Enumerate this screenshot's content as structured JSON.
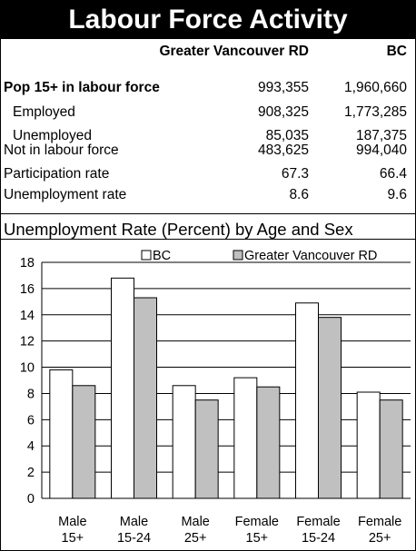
{
  "title": "Labour Force Activity",
  "table": {
    "col_headers": [
      "Greater Vancouver RD",
      "BC"
    ],
    "rows": [
      {
        "label": "Pop 15+ in labour force",
        "bold": true,
        "gvrd": "993,355",
        "bc": "1,960,660"
      },
      {
        "label": "Employed",
        "indent": true,
        "gvrd": "908,325",
        "bc": "1,773,285"
      },
      {
        "label": "Unemployed",
        "indent": true,
        "gvrd": "85,035",
        "bc": "187,375"
      },
      {
        "label": "Not in labour force",
        "gvrd": "483,625",
        "bc": "994,040"
      },
      {
        "label": "Participation rate",
        "gvrd": "67.3",
        "bc": "66.4"
      },
      {
        "label": "Unemployment rate",
        "gvrd": "8.6",
        "bc": "9.6"
      }
    ]
  },
  "chart_title": "Unemployment Rate (Percent) by Age and Sex",
  "chart_data": {
    "type": "bar",
    "categories": [
      [
        "Male",
        "15+"
      ],
      [
        "Male",
        "15-24"
      ],
      [
        "Male",
        "25+"
      ],
      [
        "Female",
        "15+"
      ],
      [
        "Female",
        "15-24"
      ],
      [
        "Female",
        "25+"
      ]
    ],
    "series": [
      {
        "name": "BC",
        "color": "#ffffff",
        "values": [
          9.8,
          16.8,
          8.6,
          9.2,
          14.9,
          8.1
        ]
      },
      {
        "name": "Greater Vancouver RD",
        "color": "#c0c0c0",
        "values": [
          8.6,
          15.3,
          7.5,
          8.5,
          13.8,
          7.5
        ]
      }
    ],
    "ylim": [
      0,
      18
    ],
    "yticks": [
      0,
      2,
      4,
      6,
      8,
      10,
      12,
      14,
      16,
      18
    ],
    "grid": true,
    "legend": "top"
  }
}
